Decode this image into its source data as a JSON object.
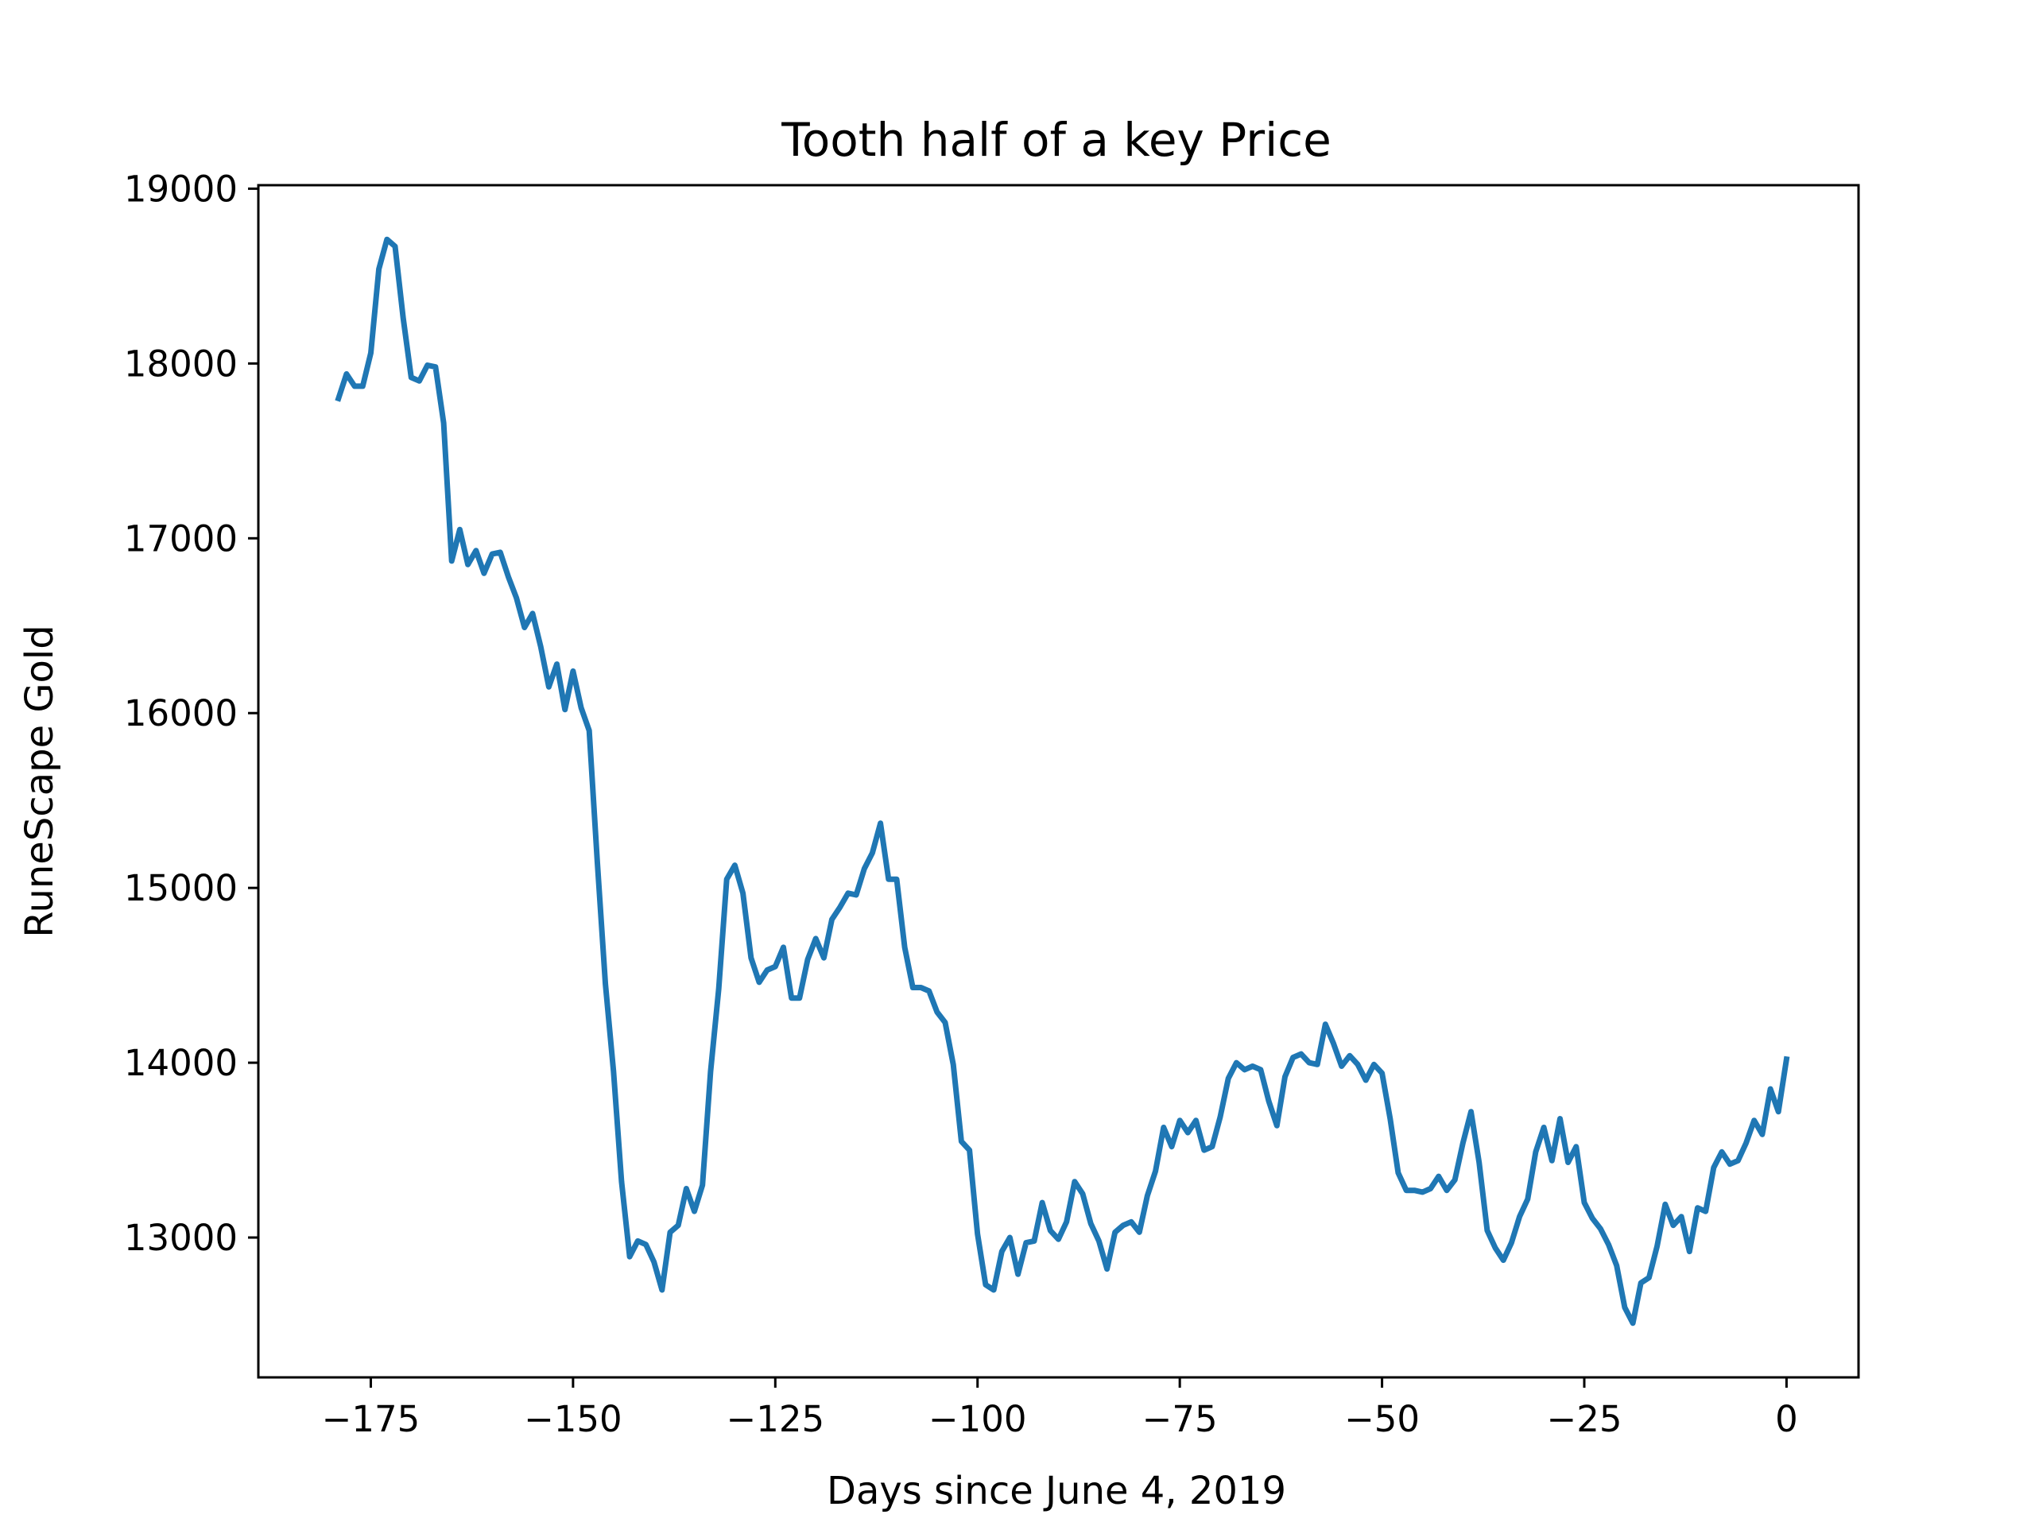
{
  "chart_data": {
    "type": "line",
    "title": "Tooth half of a key Price",
    "xlabel": "Days since June 4, 2019",
    "ylabel": "RuneScape Gold",
    "xlim": [
      -188.9,
      8.9
    ],
    "ylim": [
      12200,
      19020
    ],
    "xticks": [
      -175,
      -150,
      -125,
      -100,
      -75,
      -50,
      -25,
      0
    ],
    "xtick_labels": [
      "−175",
      "−150",
      "−125",
      "−100",
      "−75",
      "−50",
      "−25",
      "0"
    ],
    "yticks": [
      13000,
      14000,
      15000,
      16000,
      17000,
      18000,
      19000
    ],
    "ytick_labels": [
      "13000",
      "14000",
      "15000",
      "16000",
      "17000",
      "18000",
      "19000"
    ],
    "grid": false,
    "series": [
      {
        "color": "#1f77b4",
        "x": [
          -179,
          -178,
          -177,
          -176,
          -175,
          -174,
          -173,
          -172,
          -171,
          -170,
          -169,
          -168,
          -167,
          -166,
          -165,
          -164,
          -163,
          -162,
          -161,
          -160,
          -159,
          -158,
          -157,
          -156,
          -155,
          -154,
          -153,
          -152,
          -151,
          -150,
          -149,
          -148,
          -147,
          -146,
          -145,
          -144,
          -143,
          -142,
          -141,
          -140,
          -139,
          -138,
          -137,
          -136,
          -135,
          -134,
          -133,
          -132,
          -131,
          -130,
          -129,
          -128,
          -127,
          -126,
          -125,
          -124,
          -123,
          -122,
          -121,
          -120,
          -119,
          -118,
          -117,
          -116,
          -115,
          -114,
          -113,
          -112,
          -111,
          -110,
          -109,
          -108,
          -107,
          -106,
          -105,
          -104,
          -103,
          -102,
          -101,
          -100,
          -99,
          -98,
          -97,
          -96,
          -95,
          -94,
          -93,
          -92,
          -91,
          -90,
          -89,
          -88,
          -87,
          -86,
          -85,
          -84,
          -83,
          -82,
          -81,
          -80,
          -79,
          -78,
          -77,
          -76,
          -75,
          -74,
          -73,
          -72,
          -71,
          -70,
          -69,
          -68,
          -67,
          -66,
          -65,
          -64,
          -63,
          -62,
          -61,
          -60,
          -59,
          -58,
          -57,
          -56,
          -55,
          -54,
          -53,
          -52,
          -51,
          -50,
          -49,
          -48,
          -47,
          -46,
          -45,
          -44,
          -43,
          -42,
          -41,
          -40,
          -39,
          -38,
          -37,
          -36,
          -35,
          -34,
          -33,
          -32,
          -31,
          -30,
          -29,
          -28,
          -27,
          -26,
          -25,
          -24,
          -23,
          -22,
          -21,
          -20,
          -19,
          -18,
          -17,
          -16,
          -15,
          -14,
          -13,
          -12,
          -11,
          -10,
          -9,
          -8,
          -7,
          -6,
          -5,
          -4,
          -3,
          -2,
          -1,
          0
        ],
        "y": [
          17800,
          17940,
          17870,
          17870,
          18060,
          18540,
          18710,
          18670,
          18260,
          17920,
          17900,
          17990,
          17980,
          17660,
          16870,
          17050,
          16850,
          16930,
          16800,
          16910,
          16920,
          16780,
          16660,
          16490,
          16570,
          16380,
          16150,
          16280,
          16020,
          16240,
          16030,
          15900,
          15150,
          14450,
          13950,
          13320,
          12890,
          12980,
          12960,
          12860,
          12700,
          13030,
          13070,
          13280,
          13150,
          13300,
          13950,
          14420,
          15050,
          15130,
          14970,
          14600,
          14460,
          14530,
          14550,
          14660,
          14370,
          14370,
          14590,
          14710,
          14600,
          14820,
          14890,
          14970,
          14960,
          15110,
          15200,
          15370,
          15050,
          15050,
          14660,
          14430,
          14430,
          14410,
          14290,
          14230,
          13990,
          13550,
          13500,
          13020,
          12730,
          12700,
          12920,
          13000,
          12790,
          12970,
          12980,
          13200,
          13040,
          12990,
          13090,
          13320,
          13250,
          13080,
          12980,
          12820,
          13030,
          13070,
          13090,
          13030,
          13240,
          13380,
          13630,
          13520,
          13670,
          13600,
          13670,
          13500,
          13520,
          13690,
          13910,
          14000,
          13960,
          13980,
          13960,
          13780,
          13640,
          13920,
          14030,
          14050,
          14000,
          13990,
          14220,
          14110,
          13980,
          14040,
          13990,
          13900,
          13990,
          13940,
          13680,
          13370,
          13270,
          13270,
          13260,
          13280,
          13350,
          13270,
          13330,
          13540,
          13720,
          13430,
          13040,
          12940,
          12870,
          12970,
          13120,
          13220,
          13490,
          13630,
          13440,
          13680,
          13430,
          13520,
          13200,
          13110,
          13050,
          12960,
          12840,
          12600,
          12510,
          12740,
          12770,
          12950,
          13190,
          13070,
          13120,
          12920,
          13170,
          13150,
          13400,
          13490,
          13420,
          13440,
          13540,
          13670,
          13590,
          13850,
          13720,
          14020
        ]
      }
    ]
  }
}
